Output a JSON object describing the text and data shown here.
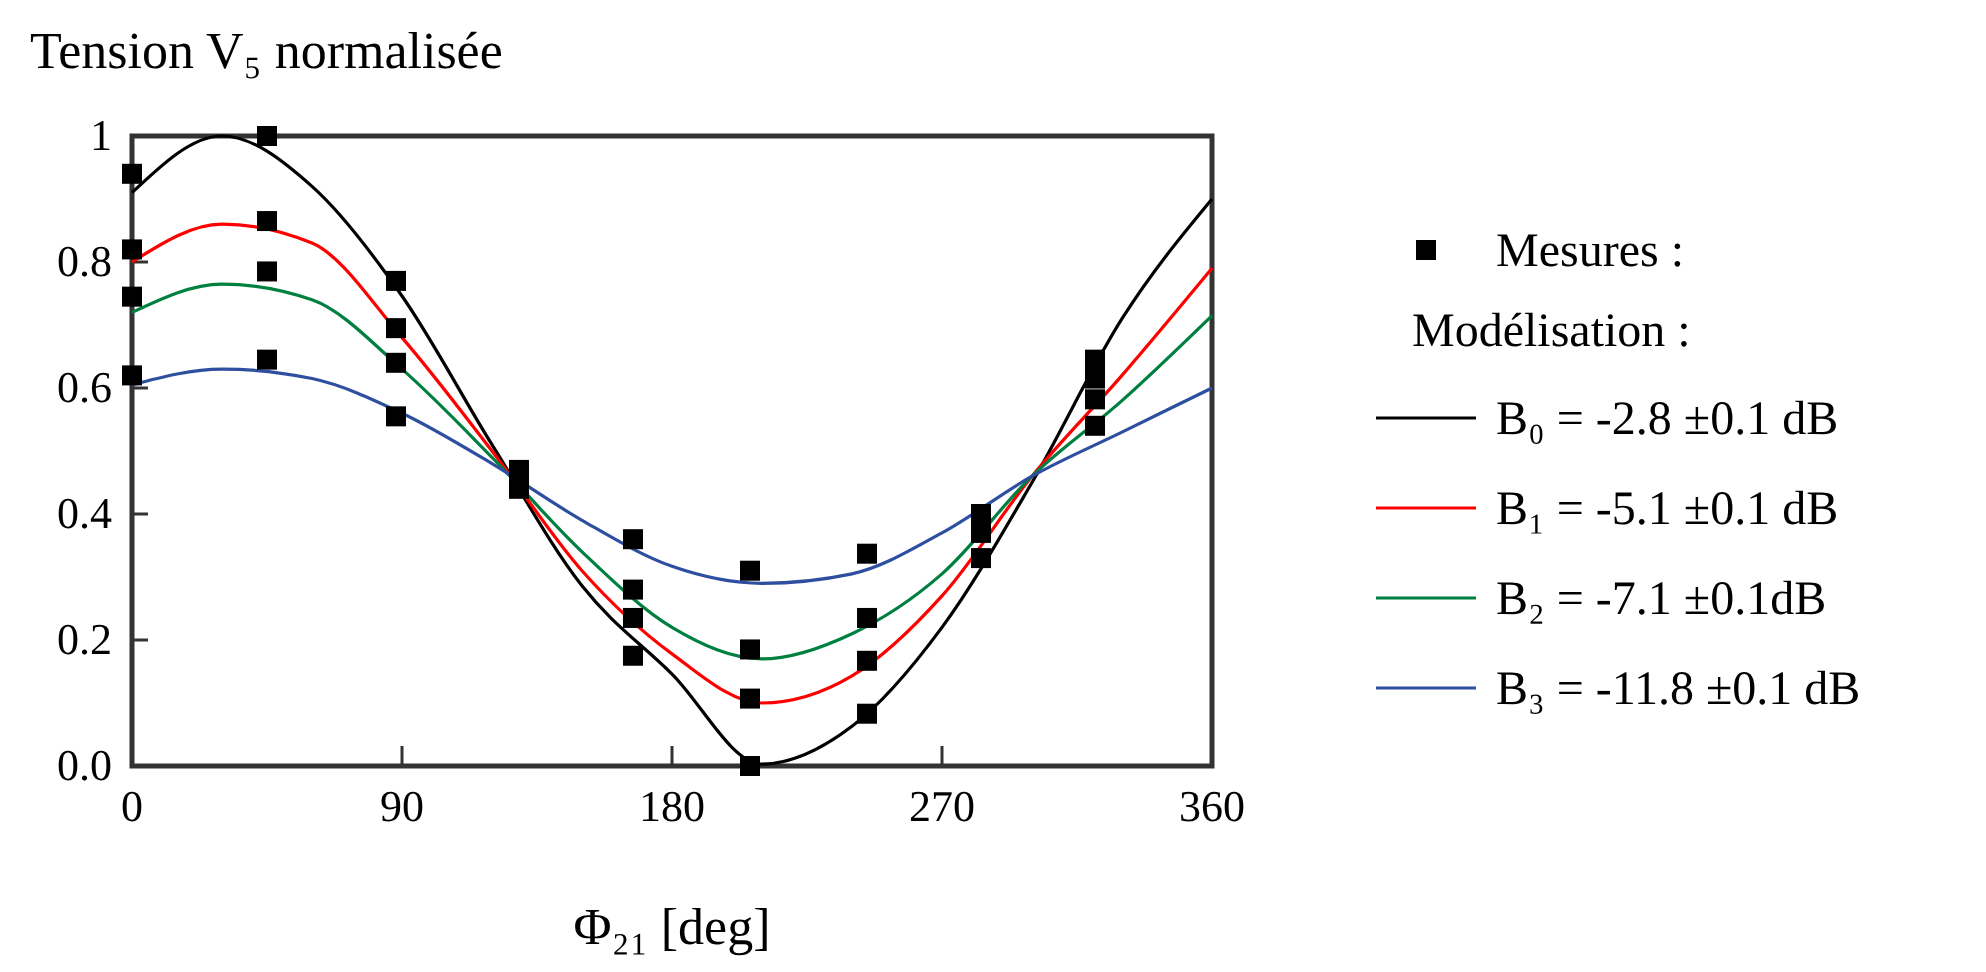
{
  "chart_data": {
    "type": "line",
    "title": "Tension V₅ normalisée",
    "xlabel": "Φ₂₁ [deg]",
    "legend_title": "Modélisation :",
    "legend": "right",
    "xlim": [
      0,
      360
    ],
    "xticks": [
      0,
      90,
      180,
      270,
      360
    ],
    "ylim": [
      0,
      1
    ],
    "yticks": [
      {
        "value": 0,
        "label": "0.0"
      },
      0.2,
      0.4,
      0.6,
      0.8,
      1
    ],
    "series": [
      {
        "type": "scatter",
        "name": "Mesures :",
        "color": "#000000",
        "marker": "square",
        "x": [
          0,
          0,
          0,
          0,
          45,
          45,
          45,
          45,
          88,
          88,
          88,
          88,
          129,
          129,
          167,
          167,
          167,
          167,
          206,
          206,
          206,
          206,
          245,
          245,
          245,
          245,
          283,
          283,
          283,
          321,
          321,
          321,
          321
        ],
        "values": [
          0.94,
          0.82,
          0.745,
          0.62,
          1.0,
          0.865,
          0.785,
          0.645,
          0.77,
          0.695,
          0.64,
          0.555,
          0.47,
          0.44,
          0.36,
          0.28,
          0.235,
          0.175,
          0.31,
          0.185,
          0.107,
          0.0,
          0.337,
          0.235,
          0.167,
          0.083,
          0.4,
          0.37,
          0.33,
          0.645,
          0.615,
          0.582,
          0.54
        ]
      },
      {
        "name": "B₀ = -2.8 ±0.1 dB",
        "color": "#000000",
        "x": [
          0,
          30,
          60,
          90,
          120,
          150,
          180,
          210,
          240,
          270,
          300,
          330,
          360
        ],
        "values": [
          0.91,
          1.0,
          0.92,
          0.746,
          0.51,
          0.286,
          0.146,
          0.003,
          0.063,
          0.22,
          0.45,
          0.71,
          0.9
        ]
      },
      {
        "name": "B₁ = -5.1 ±0.1 dB",
        "color": "#ff0000",
        "x": [
          0,
          30,
          60,
          90,
          120,
          150,
          180,
          210,
          240,
          270,
          300,
          330,
          360
        ],
        "values": [
          0.8,
          0.86,
          0.83,
          0.68,
          0.5,
          0.31,
          0.178,
          0.1,
          0.143,
          0.27,
          0.46,
          0.62,
          0.79
        ]
      },
      {
        "name": "B₂ = -7.1 ±0.1dB",
        "color": "#008040",
        "x": [
          0,
          30,
          60,
          90,
          120,
          150,
          180,
          210,
          240,
          270,
          300,
          330,
          360
        ],
        "values": [
          0.72,
          0.765,
          0.74,
          0.63,
          0.49,
          0.34,
          0.22,
          0.17,
          0.21,
          0.305,
          0.46,
          0.58,
          0.715
        ]
      },
      {
        "name": "B₃ = -11.8 ±0.1 dB",
        "color": "#2e4fa0",
        "x": [
          0,
          30,
          60,
          90,
          120,
          150,
          180,
          210,
          240,
          270,
          300,
          330,
          360
        ],
        "values": [
          0.605,
          0.63,
          0.615,
          0.56,
          0.48,
          0.39,
          0.317,
          0.29,
          0.305,
          0.37,
          0.46,
          0.53,
          0.6
        ]
      }
    ]
  }
}
